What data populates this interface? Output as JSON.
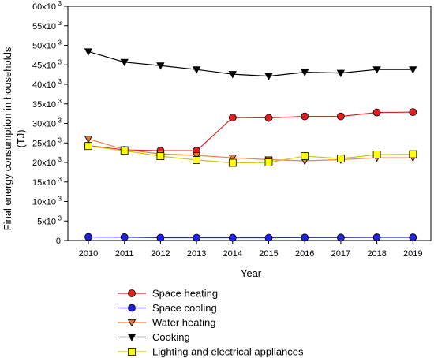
{
  "chart_data": {
    "type": "line",
    "title": "",
    "xlabel": "Year",
    "ylabel": "Final energy consumption in households",
    "ylabel_unit": "(TJ)",
    "x": [
      2010,
      2011,
      2012,
      2013,
      2014,
      2015,
      2016,
      2017,
      2018,
      2019
    ],
    "ylim": [
      0,
      60000
    ],
    "y_ticks": [
      0,
      5000,
      10000,
      15000,
      20000,
      25000,
      30000,
      35000,
      40000,
      45000,
      50000,
      55000,
      60000
    ],
    "y_tick_labels": [
      "0",
      "5x10",
      "10x10",
      "15x10",
      "20x10",
      "25x10",
      "30x10",
      "35x10",
      "40x10",
      "45x10",
      "50x10",
      "55x10",
      "60x10"
    ],
    "y_tick_exponent": "3",
    "grid": false,
    "legend_position": "bottom",
    "series": [
      {
        "name": "Space heating",
        "color": "#e02020",
        "marker": "circle",
        "marker_fill": "#e02020",
        "values": [
          24300,
          23200,
          23000,
          23000,
          31500,
          31400,
          31800,
          31800,
          32800,
          32900
        ]
      },
      {
        "name": "Space cooling",
        "color": "#2020e0",
        "marker": "circle",
        "marker_fill": "#2020e0",
        "values": [
          900,
          850,
          700,
          700,
          700,
          700,
          750,
          750,
          800,
          800
        ]
      },
      {
        "name": "Water heating",
        "color": "#f08040",
        "marker": "triangle-down",
        "marker_fill": "#e07830",
        "values": [
          26000,
          23300,
          22200,
          21800,
          21200,
          20700,
          20400,
          20700,
          21200,
          21200
        ]
      },
      {
        "name": "Cooking",
        "color": "#000000",
        "marker": "triangle-down",
        "marker_fill": "#000000",
        "values": [
          48400,
          45700,
          44800,
          43800,
          42600,
          42100,
          43100,
          42900,
          43800,
          43800
        ]
      },
      {
        "name": "Lighting and electrical appliances",
        "color": "#c8c800",
        "marker": "square",
        "marker_fill": "#ffff00",
        "values": [
          24200,
          23000,
          21600,
          20600,
          19900,
          20000,
          21600,
          21000,
          22000,
          22100
        ]
      }
    ]
  }
}
